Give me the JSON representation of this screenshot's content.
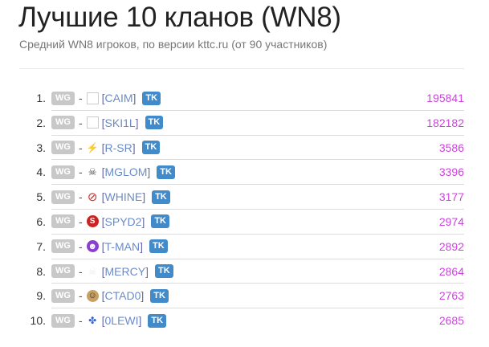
{
  "header": {
    "title": "Лучшие 10 кланов (WN8)",
    "subtitle": "Средний WN8 игроков, по версии kttc.ru (от 90 участников)"
  },
  "colors": {
    "value": "#cc44dd",
    "tk_badge": "#428bca",
    "wg_badge": "#c8c8c8",
    "tag": "#6a8bc9"
  },
  "clans": [
    {
      "rank": "1.",
      "server": "WG",
      "dash": "-",
      "emblem": "empty",
      "open": "[",
      "tag": "CAIM",
      "close": "]",
      "badge": "TK",
      "value": "195841"
    },
    {
      "rank": "2.",
      "server": "WG",
      "dash": "-",
      "emblem": "empty",
      "open": "[",
      "tag": "SKI1L",
      "close": "]",
      "badge": "TK",
      "value": "182182"
    },
    {
      "rank": "3.",
      "server": "WG",
      "dash": "-",
      "emblem": "lightning-icon",
      "open": "[",
      "tag": "R-SR",
      "close": "]",
      "badge": "TK",
      "value": "3586"
    },
    {
      "rank": "4.",
      "server": "WG",
      "dash": "-",
      "emblem": "skull-icon",
      "open": "[",
      "tag": "MGLOM",
      "close": "]",
      "badge": "TK",
      "value": "3396"
    },
    {
      "rank": "5.",
      "server": "WG",
      "dash": "-",
      "emblem": "no-whine-icon",
      "open": "[",
      "tag": "WHINE",
      "close": "]",
      "badge": "TK",
      "value": "3177"
    },
    {
      "rank": "6.",
      "server": "WG",
      "dash": "-",
      "emblem": "s-letter-icon",
      "open": "[",
      "tag": "SPYD2",
      "close": "]",
      "badge": "TK",
      "value": "2974"
    },
    {
      "rank": "7.",
      "server": "WG",
      "dash": "-",
      "emblem": "purple-face-icon",
      "open": "[",
      "tag": "T-MAN",
      "close": "]",
      "badge": "TK",
      "value": "2892"
    },
    {
      "rank": "8.",
      "server": "WG",
      "dash": "-",
      "emblem": "faded-skull-icon",
      "open": "[",
      "tag": "MERCY",
      "close": "]",
      "badge": "TK",
      "value": "2864"
    },
    {
      "rank": "9.",
      "server": "WG",
      "dash": "-",
      "emblem": "cartoon-face-icon",
      "open": "[",
      "tag": "CTAD0",
      "close": "]",
      "badge": "TK",
      "value": "2763"
    },
    {
      "rank": "10.",
      "server": "WG",
      "dash": "-",
      "emblem": "pacifier-icon",
      "open": "[",
      "tag": "0LEWI",
      "close": "]",
      "badge": "TK",
      "value": "2685"
    }
  ]
}
